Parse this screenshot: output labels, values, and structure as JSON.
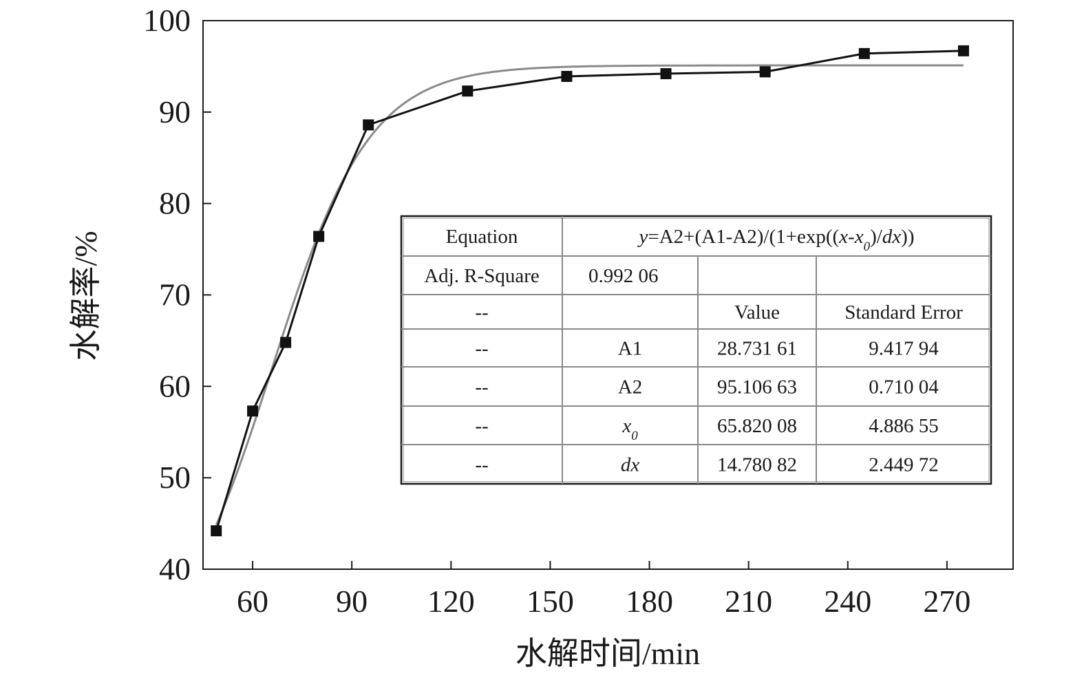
{
  "chart_data": {
    "type": "scatter",
    "xlabel": "水解时间/min",
    "ylabel": "水解率/%",
    "xlim": [
      45,
      290
    ],
    "ylim": [
      40,
      100
    ],
    "x_ticks": [
      60,
      90,
      120,
      150,
      180,
      210,
      240,
      270
    ],
    "y_ticks": [
      40,
      50,
      60,
      70,
      80,
      90,
      100
    ],
    "series": [
      {
        "style": "black line with square markers",
        "x": [
          49,
          60,
          70,
          80,
          95,
          125,
          155,
          185,
          215,
          245,
          275
        ],
        "y": [
          44.2,
          57.3,
          64.8,
          76.4,
          88.6,
          92.3,
          93.9,
          94.2,
          94.4,
          96.4,
          96.7
        ]
      },
      {
        "style": "gray smooth fitted curve",
        "fit": {
          "A1": 28.73161,
          "A2": 95.10663,
          "x0": 65.82008,
          "dx": 14.78082,
          "x_from": 49,
          "x_to": 275
        }
      }
    ],
    "grid": false,
    "fit_table": {
      "equation_label": "Equation",
      "equation_parts": [
        {
          "t": "y",
          "i": true
        },
        {
          "t": "=A2+(A1-A2)/(1+exp(("
        },
        {
          "t": "x",
          "i": true
        },
        {
          "t": "-"
        },
        {
          "t": "x",
          "i": true
        },
        {
          "t": "0",
          "i": true,
          "sub": true
        },
        {
          "t": ")/"
        },
        {
          "t": "dx",
          "i": true
        },
        {
          "t": "))"
        }
      ],
      "adj_r_label": "Adj. R-Square",
      "adj_r_value": "0.992 06",
      "header": {
        "col0": "--",
        "value": "Value",
        "stderr": "Standard Error"
      },
      "rows": [
        {
          "col0": "--",
          "param": "A1",
          "value": "28.731 61",
          "stderr": "9.417 94"
        },
        {
          "col0": "--",
          "param": "A2",
          "value": "95.106 63",
          "stderr": "0.710 04"
        },
        {
          "col0": "--",
          "param": "x0",
          "param_italic": true,
          "param_sub": "0",
          "value": "65.820 08",
          "stderr": "4.886 55"
        },
        {
          "col0": "--",
          "param": "dx",
          "param_italic": true,
          "value": "14.780 82",
          "stderr": "2.449 72"
        }
      ]
    }
  }
}
